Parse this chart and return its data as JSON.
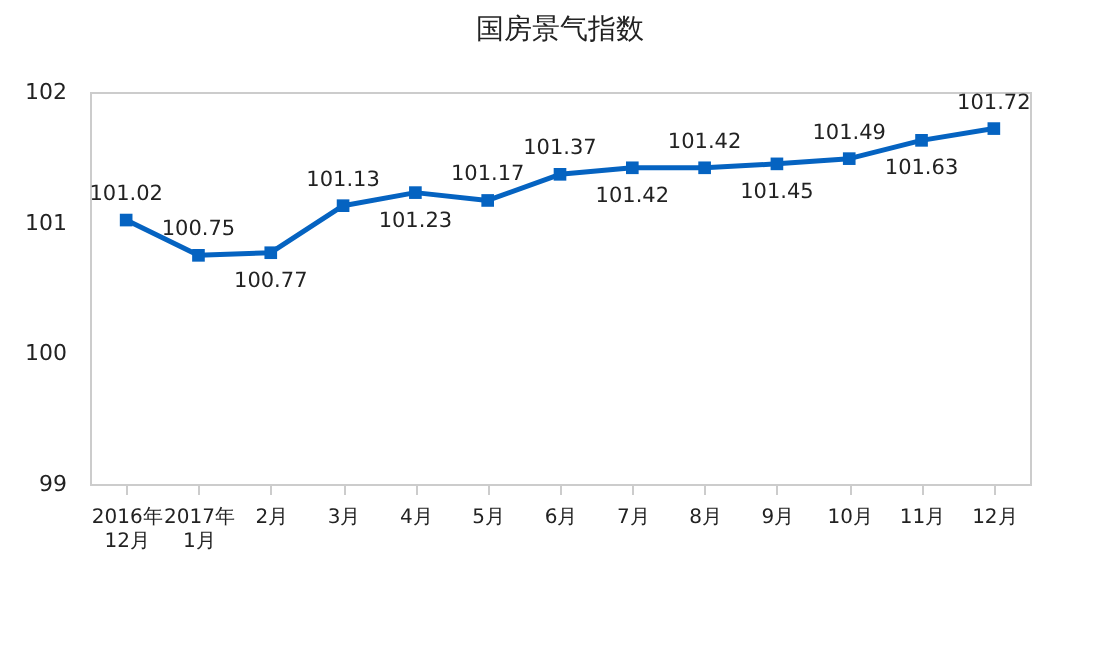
{
  "chart_data": {
    "type": "line",
    "title": "国房景气指数",
    "categories": [
      "2016年\n12月",
      "2017年\n1月",
      "2月",
      "3月",
      "4月",
      "5月",
      "6月",
      "7月",
      "8月",
      "9月",
      "10月",
      "11月",
      "12月"
    ],
    "series": [
      {
        "color": "#0563c1",
        "values": [
          101.02,
          100.75,
          100.77,
          101.13,
          101.23,
          101.17,
          101.37,
          101.42,
          101.42,
          101.45,
          101.49,
          101.63,
          101.72
        ]
      }
    ],
    "ylim": [
      99,
      102
    ],
    "yticks": [
      99,
      100,
      101,
      102
    ],
    "grid": false,
    "marker": "square",
    "data_labels": true
  }
}
